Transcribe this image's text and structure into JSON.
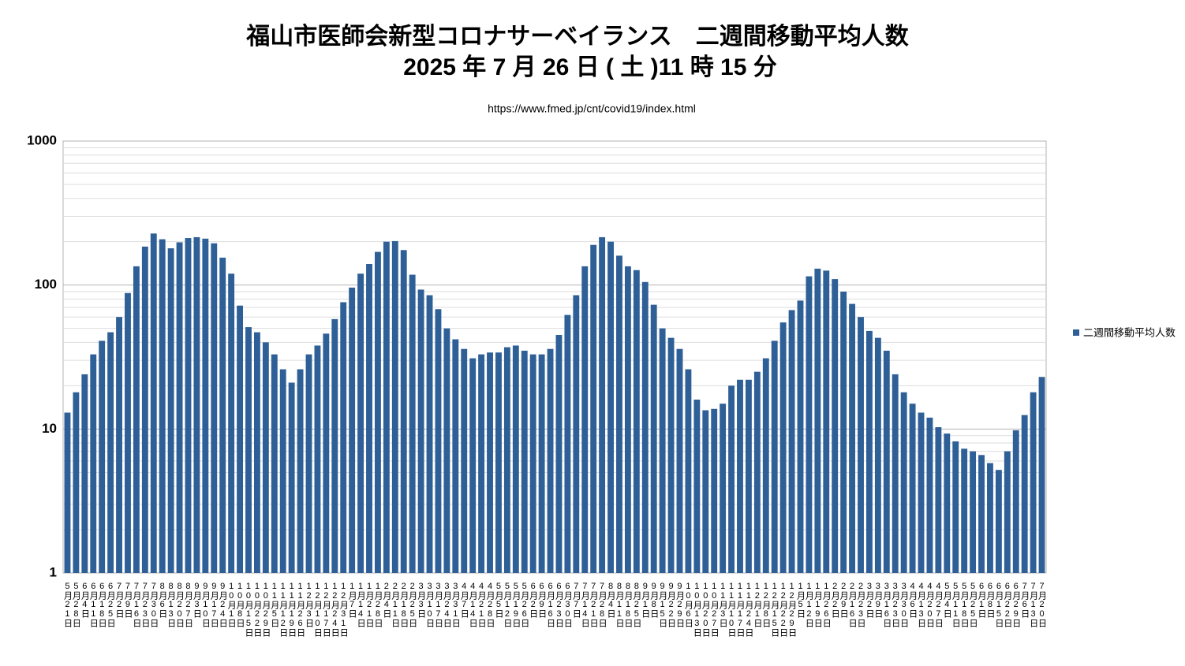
{
  "chart_data": {
    "type": "bar",
    "title": "福山市医師会新型コロナサーベイランス　二週間移動平均人数",
    "subtitle": "2025 年 7 月 26 日 ( 土 )11 時 15 分",
    "source": "https://www.fmed.jp/cnt/covid19/index.html",
    "categories": [
      "5月21日",
      "5月28日",
      "6月4日",
      "6月11日",
      "6月18日",
      "6月25日",
      "7月2日",
      "7月9日",
      "7月16日",
      "7月23日",
      "7月30日",
      "8月6日",
      "8月13日",
      "8月20日",
      "8月27日",
      "9月3日",
      "9月10日",
      "9月17日",
      "9月24日",
      "10月1日",
      "10月8日",
      "10月15日",
      "10月22日",
      "10月29日",
      "11月5日",
      "11月12日",
      "11月19日",
      "11月26日",
      "12月3日",
      "12月10日",
      "12月17日",
      "12月24日",
      "12月31日",
      "1月7日",
      "1月14日",
      "1月21日",
      "1月28日",
      "2月4日",
      "2月11日",
      "2月18日",
      "2月25日",
      "3月3日",
      "3月10日",
      "3月17日",
      "3月24日",
      "3月31日",
      "4月7日",
      "4月14日",
      "4月21日",
      "4月28日",
      "5月5日",
      "5月12日",
      "5月19日",
      "5月26日",
      "6月2日",
      "6月9日",
      "6月16日",
      "6月23日",
      "6月30日",
      "7月7日",
      "7月14日",
      "7月21日",
      "7月28日",
      "8月4日",
      "8月11日",
      "8月18日",
      "8月25日",
      "9月1日",
      "9月8日",
      "9月15日",
      "9月22日",
      "9月29日",
      "10月6日",
      "10月13日",
      "10月20日",
      "10月27日",
      "11月3日",
      "11月10日",
      "11月17日",
      "11月24日",
      "12月1日",
      "12月8日",
      "12月15日",
      "12月22日",
      "12月29日",
      "1月5日",
      "1月12日",
      "1月19日",
      "1月26日",
      "2月2日",
      "2月9日",
      "2月16日",
      "2月23日",
      "3月2日",
      "3月9日",
      "3月16日",
      "3月23日",
      "3月30日",
      "4月6日",
      "4月13日",
      "4月20日",
      "4月27日",
      "5月4日",
      "5月11日",
      "5月18日",
      "5月25日",
      "6月1日",
      "6月8日",
      "6月15日",
      "6月22日",
      "6月29日",
      "7月6日",
      "7月13日",
      "7月20日"
    ],
    "series": [
      {
        "name": "二週間移動平均人数",
        "color": "#2e5f96",
        "values": [
          13,
          18,
          24,
          33,
          41,
          47,
          60,
          88,
          135,
          185,
          228,
          208,
          180,
          198,
          212,
          215,
          210,
          195,
          155,
          120,
          72,
          51,
          47,
          40,
          33,
          26,
          21,
          26,
          33,
          38,
          46,
          58,
          76,
          96,
          120,
          140,
          170,
          200,
          202,
          175,
          118,
          93,
          85,
          68,
          50,
          42,
          36,
          31,
          33,
          34,
          34,
          37,
          38,
          35,
          33,
          33,
          36,
          45,
          62,
          85,
          135,
          190,
          215,
          200,
          160,
          135,
          127,
          105,
          73,
          50,
          43,
          36,
          26,
          16,
          13.5,
          13.8,
          15,
          20,
          22,
          22,
          25,
          31,
          41,
          55,
          67,
          78,
          115,
          130,
          126,
          110,
          90,
          74,
          60,
          48,
          43,
          35,
          24,
          18,
          15,
          13,
          12,
          10.3,
          9.3,
          8.2,
          7.3,
          7,
          6.6,
          5.8,
          5.2,
          7,
          9.8,
          12.5,
          18,
          23
        ]
      }
    ],
    "log_scale": true,
    "ylim": [
      1,
      1000
    ],
    "yticks": [
      1,
      10,
      100,
      1000
    ],
    "minor_gridlines": [
      2,
      3,
      4,
      5,
      6,
      7,
      8,
      9,
      20,
      30,
      40,
      50,
      60,
      70,
      80,
      90,
      200,
      300,
      400,
      500,
      600,
      700,
      800,
      900
    ],
    "grid": true,
    "legend": "right"
  }
}
